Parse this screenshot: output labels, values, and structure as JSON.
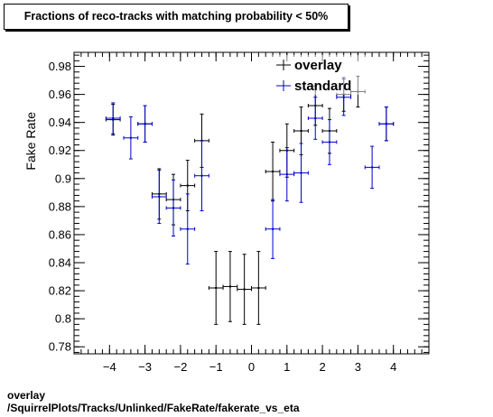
{
  "chart_data": {
    "type": "scatter",
    "title": "Fractions of reco-tracks with matching probability < 50%",
    "ylabel": "Fake Rate",
    "xlabel": "",
    "xlim": [
      -5,
      5
    ],
    "ylim": [
      0.775,
      0.99
    ],
    "x_ticks": [
      -4,
      -3,
      -2,
      -1,
      0,
      1,
      2,
      3,
      4
    ],
    "x_tick_labels": [
      "−4",
      "−3",
      "−2",
      "−1",
      "0",
      "1",
      "2",
      "3",
      "4"
    ],
    "y_ticks": [
      0.78,
      0.8,
      0.82,
      0.84,
      0.86,
      0.88,
      0.9,
      0.92,
      0.94,
      0.96,
      0.98
    ],
    "y_tick_labels": [
      "0.78",
      "0.8",
      "0.82",
      "0.84",
      "0.86",
      "0.88",
      "0.9",
      "0.92",
      "0.94",
      "0.96",
      "0.98"
    ],
    "legend_position": "top-right",
    "grid": false,
    "series": [
      {
        "name": "overlay",
        "color": "#000000",
        "points": [
          {
            "x": -3.9,
            "y": 0.942,
            "xerr": 0.2,
            "yerr": 0.011
          },
          {
            "x": -3.0,
            "y": 0.939,
            "xerr": 0.2,
            "yerr": 0.013
          },
          {
            "x": -2.6,
            "y": 0.889,
            "xerr": 0.2,
            "yerr": 0.018
          },
          {
            "x": -2.2,
            "y": 0.885,
            "xerr": 0.2,
            "yerr": 0.018
          },
          {
            "x": -1.8,
            "y": 0.895,
            "xerr": 0.2,
            "yerr": 0.018
          },
          {
            "x": -1.4,
            "y": 0.927,
            "xerr": 0.2,
            "yerr": 0.019
          },
          {
            "x": -1.0,
            "y": 0.822,
            "xerr": 0.2,
            "yerr": 0.026
          },
          {
            "x": -0.6,
            "y": 0.823,
            "xerr": 0.2,
            "yerr": 0.025
          },
          {
            "x": -0.2,
            "y": 0.821,
            "xerr": 0.2,
            "yerr": 0.025
          },
          {
            "x": 0.2,
            "y": 0.822,
            "xerr": 0.2,
            "yerr": 0.026
          },
          {
            "x": 0.6,
            "y": 0.905,
            "xerr": 0.2,
            "yerr": 0.021
          },
          {
            "x": 1.0,
            "y": 0.92,
            "xerr": 0.2,
            "yerr": 0.019
          },
          {
            "x": 1.4,
            "y": 0.934,
            "xerr": 0.2,
            "yerr": 0.017
          },
          {
            "x": 1.8,
            "y": 0.952,
            "xerr": 0.2,
            "yerr": 0.014
          },
          {
            "x": 2.2,
            "y": 0.934,
            "xerr": 0.2,
            "yerr": 0.016
          },
          {
            "x": 2.6,
            "y": 0.96,
            "xerr": 0.2,
            "yerr": 0.012
          },
          {
            "x": 3.0,
            "y": 0.962,
            "xerr": 0.2,
            "yerr": 0.011
          },
          {
            "x": 3.8,
            "y": 0.939,
            "xerr": 0.2,
            "yerr": 0.012
          }
        ]
      },
      {
        "name": "standard",
        "color": "#0000cc",
        "points": [
          {
            "x": -3.9,
            "y": 0.943,
            "xerr": 0.2,
            "yerr": 0.011
          },
          {
            "x": -3.4,
            "y": 0.929,
            "xerr": 0.2,
            "yerr": 0.015
          },
          {
            "x": -3.0,
            "y": 0.939,
            "xerr": 0.2,
            "yerr": 0.013
          },
          {
            "x": -2.6,
            "y": 0.887,
            "xerr": 0.2,
            "yerr": 0.019
          },
          {
            "x": -2.2,
            "y": 0.879,
            "xerr": 0.2,
            "yerr": 0.02
          },
          {
            "x": -1.8,
            "y": 0.864,
            "xerr": 0.2,
            "yerr": 0.025
          },
          {
            "x": -1.4,
            "y": 0.902,
            "xerr": 0.2,
            "yerr": 0.025
          },
          {
            "x": 0.6,
            "y": 0.864,
            "xerr": 0.2,
            "yerr": 0.021
          },
          {
            "x": 1.0,
            "y": 0.903,
            "xerr": 0.2,
            "yerr": 0.019
          },
          {
            "x": 1.4,
            "y": 0.904,
            "xerr": 0.2,
            "yerr": 0.021
          },
          {
            "x": 1.8,
            "y": 0.943,
            "xerr": 0.2,
            "yerr": 0.015
          },
          {
            "x": 2.2,
            "y": 0.926,
            "xerr": 0.2,
            "yerr": 0.016
          },
          {
            "x": 2.6,
            "y": 0.958,
            "xerr": 0.2,
            "yerr": 0.013
          },
          {
            "x": 3.4,
            "y": 0.908,
            "xerr": 0.2,
            "yerr": 0.015
          },
          {
            "x": 3.8,
            "y": 0.939,
            "xerr": 0.2,
            "yerr": 0.012
          }
        ]
      }
    ]
  },
  "caption": {
    "line1": "overlay",
    "line2": "/SquirrelPlots/Tracks/Unlinked/FakeRate/fakerate_vs_eta"
  }
}
